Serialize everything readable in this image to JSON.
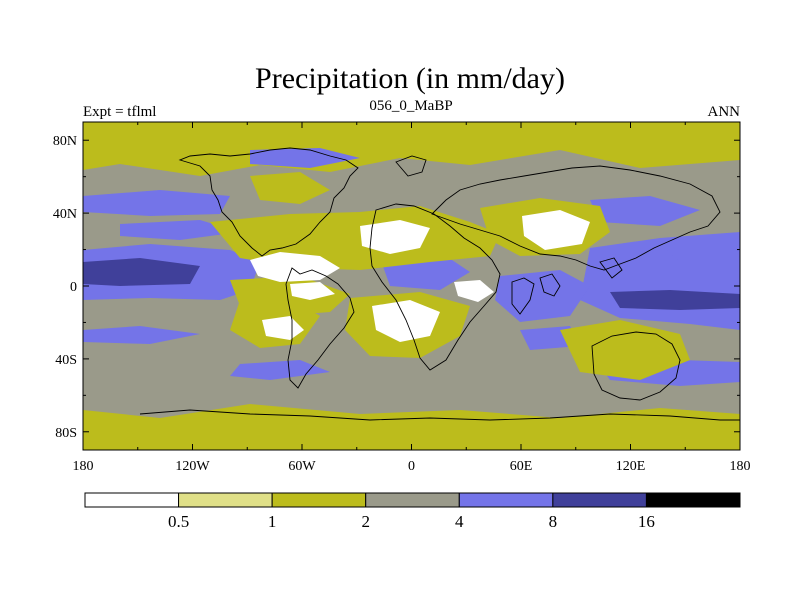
{
  "chart_data": {
    "type": "heatmap",
    "title": "Precipitation (in mm/day)",
    "left_label": "Expt = tflml",
    "center_label": "056_0_MaBP",
    "right_label": "ANN",
    "x_ticks": [
      "180",
      "120W",
      "60W",
      "0",
      "60E",
      "120E",
      "180"
    ],
    "x_tick_values": [
      -180,
      -120,
      -60,
      0,
      60,
      120,
      180
    ],
    "y_ticks": [
      "80N",
      "40N",
      "0",
      "40S",
      "80S"
    ],
    "y_tick_values": [
      80,
      40,
      0,
      -40,
      -80
    ],
    "xlim": [
      -180,
      180
    ],
    "ylim": [
      -90,
      90
    ],
    "colorbar": {
      "levels": [
        "0.5",
        "1",
        "2",
        "4",
        "8",
        "16"
      ],
      "level_values": [
        0.5,
        1,
        2,
        4,
        8,
        16
      ],
      "colors": [
        "#ffffff",
        "#e0e088",
        "#bcbc1c",
        "#9a9a8a",
        "#7474e8",
        "#40409a",
        "#000000"
      ]
    },
    "fields": [
      {
        "name": "background",
        "bin": 3
      },
      {
        "name": "polar-cap-north",
        "bin": 2
      },
      {
        "name": "polar-cap-south",
        "bin": 2
      },
      {
        "name": "tropical-band-pacific",
        "bin": 4
      },
      {
        "name": "tropical-band-east-pacific",
        "bin": 4
      },
      {
        "name": "itcz-core-west",
        "bin": 5
      },
      {
        "name": "itcz-core-east",
        "bin": 5
      },
      {
        "name": "storm-track-north",
        "bin": 4
      },
      {
        "name": "storm-track-south",
        "bin": 4
      },
      {
        "name": "storm-track-south-east",
        "bin": 4
      },
      {
        "name": "indian-ocean-wet",
        "bin": 4
      },
      {
        "name": "west-pacific-wet",
        "bin": 4
      },
      {
        "name": "south-atlantic-wet",
        "bin": 4
      },
      {
        "name": "north-africa-dry",
        "bin": 2
      },
      {
        "name": "central-atlantic-dry",
        "bin": 2
      },
      {
        "name": "south-africa-dry",
        "bin": 2
      },
      {
        "name": "east-asia-dry",
        "bin": 2
      },
      {
        "name": "south-pacific-dry",
        "bin": 2
      },
      {
        "name": "australia-dry",
        "bin": 2
      },
      {
        "name": "north-america-dry",
        "bin": 2
      },
      {
        "name": "hyperarid-east-pacific",
        "bin": 0
      },
      {
        "name": "hyperarid-sahara",
        "bin": 0
      },
      {
        "name": "hyperarid-south-africa",
        "bin": 0
      },
      {
        "name": "hyperarid-east-asia",
        "bin": 0
      },
      {
        "name": "hyperarid-south-pacific",
        "bin": 0
      },
      {
        "name": "hyperarid-north-atlantic",
        "bin": 0
      }
    ]
  }
}
